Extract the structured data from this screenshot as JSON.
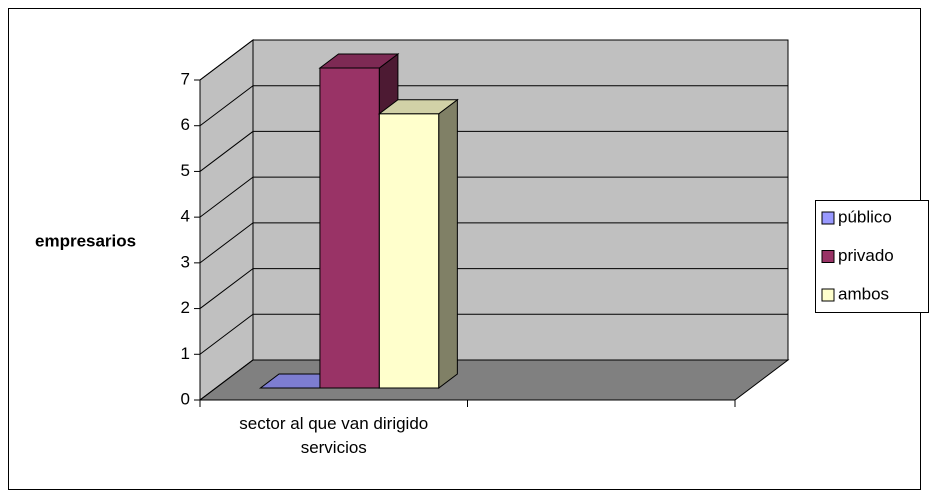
{
  "chart_data": {
    "type": "bar3d",
    "y_label": "empresarios",
    "categories": [
      "sector al que van dirigido servicios",
      null
    ],
    "series": [
      {
        "name": "público",
        "color": "#9999ff",
        "values": [
          0,
          null
        ]
      },
      {
        "name": "privado",
        "color": "#993366",
        "values": [
          7,
          null
        ]
      },
      {
        "name": "ambos",
        "color": "#ffffcc",
        "values": [
          6,
          null
        ]
      }
    ],
    "ylim": [
      0,
      7
    ],
    "yticks": [
      0,
      1,
      2,
      3,
      4,
      5,
      6,
      7
    ],
    "grid": true,
    "legend": "right",
    "wall_color": "#c0c0c0",
    "floor_color": "#808080"
  }
}
